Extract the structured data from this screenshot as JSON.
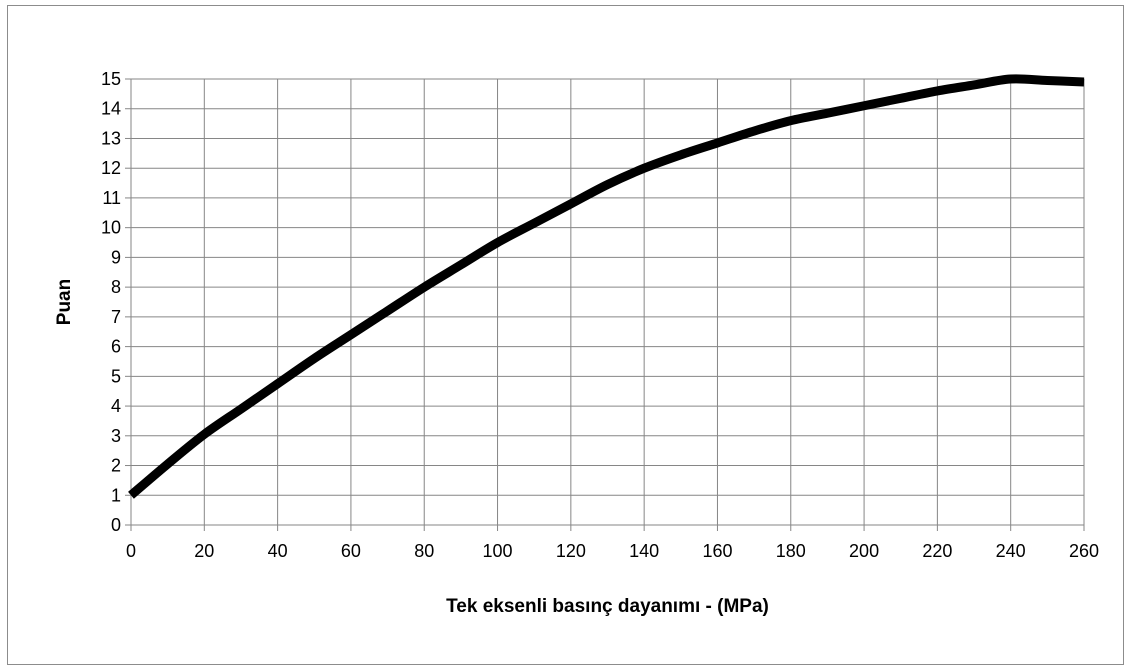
{
  "chart_data": {
    "type": "line",
    "title": "",
    "xlabel": "Tek eksenli basınç dayanımı - (MPa)",
    "ylabel": "Puan",
    "xlim": [
      0,
      260
    ],
    "ylim": [
      0,
      15
    ],
    "x_ticks": [
      0,
      20,
      40,
      60,
      80,
      100,
      120,
      140,
      160,
      180,
      200,
      220,
      240,
      260
    ],
    "y_ticks": [
      0,
      1,
      2,
      3,
      4,
      5,
      6,
      7,
      8,
      9,
      10,
      11,
      12,
      13,
      14,
      15
    ],
    "grid": true,
    "legend": "none",
    "series": [
      {
        "color": "#000000",
        "x": [
          0,
          10,
          20,
          30,
          40,
          50,
          60,
          70,
          80,
          90,
          100,
          110,
          120,
          130,
          140,
          150,
          160,
          170,
          180,
          190,
          200,
          210,
          220,
          230,
          240,
          250,
          260
        ],
        "y": [
          1.0,
          2.05,
          3.05,
          3.9,
          4.75,
          5.6,
          6.4,
          7.2,
          8.0,
          8.75,
          9.5,
          10.15,
          10.8,
          11.45,
          12.0,
          12.45,
          12.85,
          13.25,
          13.6,
          13.85,
          14.1,
          14.35,
          14.6,
          14.8,
          15.0,
          14.95,
          14.9
        ]
      }
    ]
  }
}
